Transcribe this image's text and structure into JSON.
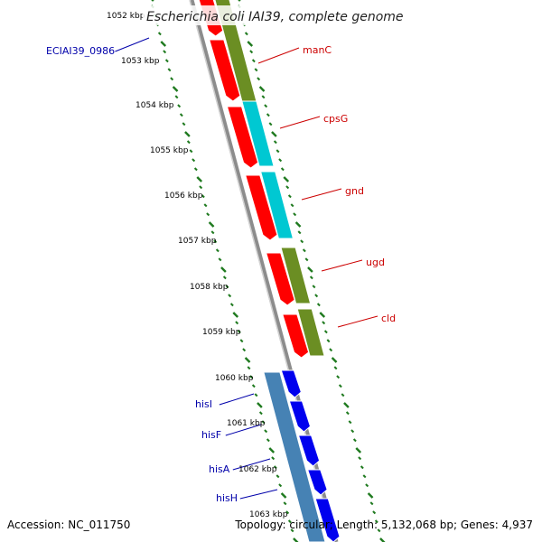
{
  "title": "Escherichia coli IAI39, complete genome",
  "footer": {
    "accession": "Accession: NC_011750",
    "topology": "Topology: circular; Length: 5,132,068 bp; Genes: 4,937"
  },
  "colors": {
    "backbone": "#8c8c8c",
    "tick": "#1f7a1f",
    "label_red": "#cc0000",
    "label_blue": "#0000aa",
    "gene_red": "#ff0000",
    "gene_olive": "#6b8e23",
    "gene_cyan": "#00c8d2",
    "gene_blue": "#0000ee",
    "gene_steelblue": "#4682b4"
  },
  "scale_labels": [
    "1052 kbp",
    "1053 kbp",
    "1054 kbp",
    "1055 kbp",
    "1056 kbp",
    "1057 kbp",
    "1058 kbp",
    "1059 kbp",
    "1060 kbp",
    "1061 kbp",
    "1062 kbp",
    "1063 kbp"
  ],
  "gene_labels_red": [
    "manC",
    "cpsG",
    "gnd",
    "ugd",
    "cld"
  ],
  "gene_labels_blue": [
    "ECIAI39_0986",
    "hisI",
    "hisF",
    "hisA",
    "hisH"
  ]
}
